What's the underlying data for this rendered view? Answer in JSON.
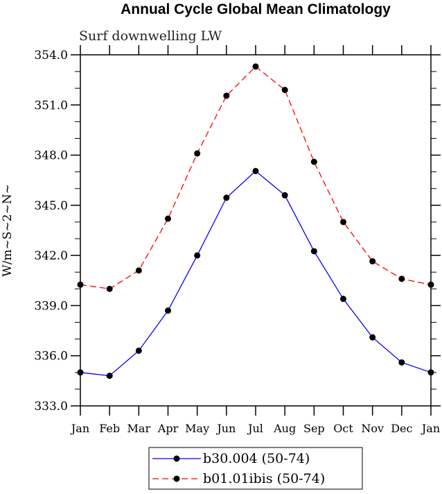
{
  "chart_data": {
    "type": "line",
    "title": "Annual Cycle Global Mean Climatology",
    "subtitle": "Surf downwelling LW",
    "ylabel": "W/m~S~2~N~",
    "xlabel": "",
    "categories": [
      "Jan",
      "Feb",
      "Mar",
      "Apr",
      "May",
      "Jun",
      "Jul",
      "Aug",
      "Sep",
      "Oct",
      "Nov",
      "Dec",
      "Jan"
    ],
    "ylim": [
      333,
      354
    ],
    "yticks": [
      "333.0",
      "336.0",
      "339.0",
      "342.0",
      "345.0",
      "348.0",
      "351.0",
      "354.0"
    ],
    "grid": false,
    "legend_position": "bottom-center",
    "series": [
      {
        "name": "b30.004 (50-74)",
        "color": "#0000ff",
        "dash": "solid",
        "values": [
          335.0,
          334.8,
          336.3,
          338.7,
          342.0,
          345.45,
          347.05,
          345.6,
          342.25,
          339.4,
          337.1,
          335.6,
          335.0
        ]
      },
      {
        "name": "b01.01ibis (50-74)",
        "color": "#ff0000",
        "dash": "dashed",
        "values": [
          340.25,
          340.0,
          341.1,
          344.2,
          348.1,
          351.55,
          353.3,
          351.9,
          347.6,
          344.0,
          341.65,
          340.6,
          340.25
        ]
      }
    ]
  }
}
